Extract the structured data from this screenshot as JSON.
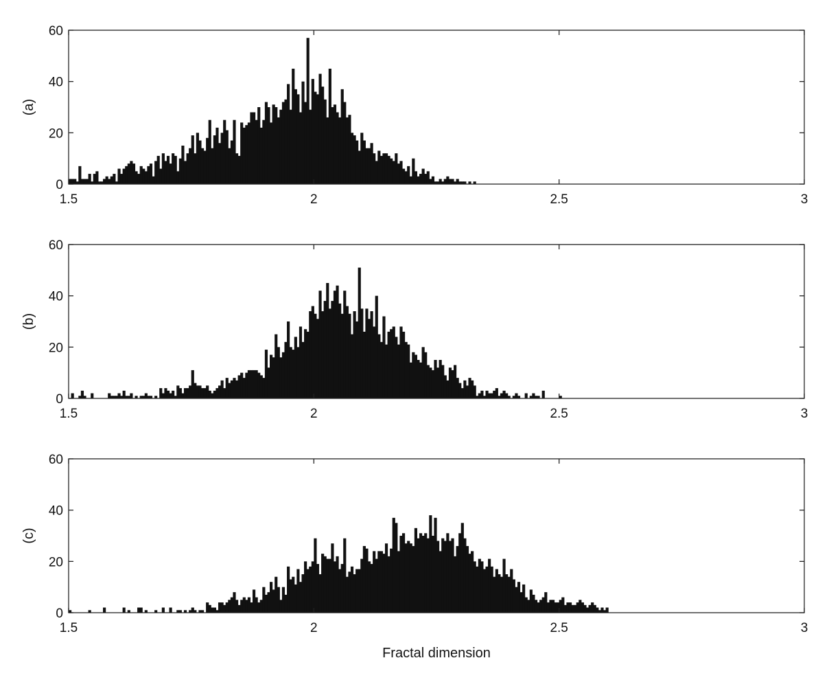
{
  "chart_data": [
    {
      "type": "bar",
      "panel_label": "(a)",
      "xlim": [
        1.5,
        3
      ],
      "ylim": [
        0,
        60
      ],
      "xticks": [
        "1.5",
        "2",
        "2.5",
        "3"
      ],
      "yticks": [
        "0",
        "20",
        "40",
        "60"
      ],
      "xlabel": "",
      "grid": false,
      "bin_start": 1.5,
      "bin_width": 0.005,
      "colors": {
        "bars": "#111111"
      },
      "values": [
        2,
        2,
        2,
        1,
        7,
        2,
        2,
        2,
        4,
        1,
        4,
        5,
        1,
        1,
        2,
        3,
        2,
        3,
        4,
        1,
        6,
        4,
        6,
        7,
        8,
        9,
        8,
        5,
        4,
        7,
        6,
        5,
        7,
        8,
        3,
        9,
        11,
        6,
        12,
        9,
        11,
        8,
        12,
        11,
        5,
        10,
        15,
        9,
        12,
        14,
        19,
        12,
        20,
        17,
        14,
        13,
        18,
        25,
        14,
        19,
        22,
        16,
        20,
        25,
        21,
        14,
        17,
        25,
        12,
        11,
        24,
        22,
        23,
        24,
        28,
        28,
        25,
        30,
        22,
        25,
        32,
        30,
        24,
        31,
        30,
        26,
        29,
        32,
        33,
        39,
        29,
        45,
        37,
        35,
        28,
        40,
        32,
        57,
        29,
        41,
        36,
        35,
        43,
        38,
        33,
        26,
        45,
        30,
        31,
        28,
        26,
        37,
        32,
        26,
        27,
        20,
        19,
        17,
        13,
        20,
        17,
        14,
        14,
        16,
        12,
        9,
        13,
        11,
        12,
        12,
        11,
        10,
        9,
        12,
        8,
        9,
        6,
        5,
        7,
        3,
        10,
        5,
        3,
        4,
        6,
        4,
        5,
        2,
        3,
        1,
        1,
        2,
        1,
        2,
        3,
        2,
        2,
        1,
        2,
        1,
        1,
        1,
        0,
        1,
        0,
        1
      ]
    },
    {
      "type": "bar",
      "panel_label": "(b)",
      "xlim": [
        1.5,
        3
      ],
      "ylim": [
        0,
        60
      ],
      "xticks": [
        "1.5",
        "2",
        "2.5",
        "3"
      ],
      "yticks": [
        "0",
        "20",
        "40",
        "60"
      ],
      "xlabel": "",
      "grid": false,
      "bin_start": 1.5,
      "bin_width": 0.005,
      "colors": {
        "bars": "#111111"
      },
      "values": [
        0,
        2,
        0,
        0,
        1,
        3,
        1,
        0,
        0,
        2,
        0,
        0,
        0,
        0,
        0,
        0,
        2,
        1,
        1,
        1,
        2,
        1,
        3,
        1,
        1,
        2,
        0,
        1,
        0,
        1,
        1,
        2,
        1,
        1,
        0,
        1,
        0,
        4,
        2,
        4,
        3,
        2,
        3,
        1,
        5,
        4,
        2,
        4,
        4,
        5,
        11,
        6,
        5,
        5,
        4,
        4,
        5,
        3,
        2,
        3,
        4,
        5,
        7,
        4,
        8,
        6,
        7,
        8,
        7,
        9,
        10,
        8,
        10,
        11,
        11,
        11,
        11,
        10,
        9,
        8,
        19,
        12,
        17,
        16,
        25,
        20,
        16,
        18,
        22,
        30,
        20,
        19,
        24,
        20,
        28,
        22,
        27,
        26,
        34,
        36,
        33,
        31,
        42,
        34,
        38,
        45,
        35,
        38,
        42,
        44,
        37,
        33,
        42,
        36,
        33,
        25,
        34,
        30,
        51,
        35,
        26,
        35,
        31,
        34,
        28,
        40,
        25,
        22,
        32,
        21,
        26,
        27,
        28,
        24,
        21,
        28,
        26,
        22,
        21,
        14,
        18,
        17,
        15,
        14,
        20,
        18,
        13,
        12,
        11,
        15,
        12,
        15,
        13,
        9,
        7,
        12,
        11,
        13,
        8,
        6,
        4,
        7,
        5,
        8,
        7,
        5,
        1,
        2,
        3,
        1,
        3,
        2,
        2,
        3,
        4,
        1,
        2,
        3,
        2,
        1,
        0,
        1,
        2,
        1,
        0,
        0,
        2,
        0,
        1,
        2,
        1,
        1,
        0,
        3,
        0,
        0,
        0,
        0,
        0,
        0,
        1
      ]
    },
    {
      "type": "bar",
      "panel_label": "(c)",
      "xlim": [
        1.5,
        3
      ],
      "ylim": [
        0,
        60
      ],
      "xticks": [
        "1.5",
        "2",
        "2.5",
        "3"
      ],
      "yticks": [
        "0",
        "20",
        "40",
        "60"
      ],
      "xlabel": "Fractal dimension",
      "grid": false,
      "bin_start": 1.5,
      "bin_width": 0.005,
      "colors": {
        "bars": "#111111"
      },
      "values": [
        1,
        0,
        0,
        0,
        0,
        0,
        0,
        0,
        1,
        0,
        0,
        0,
        0,
        0,
        2,
        0,
        0,
        0,
        0,
        0,
        0,
        0,
        2,
        0,
        1,
        0,
        0,
        0,
        2,
        2,
        0,
        1,
        0,
        0,
        0,
        1,
        0,
        0,
        2,
        0,
        0,
        2,
        0,
        0,
        1,
        1,
        0,
        1,
        0,
        1,
        2,
        1,
        0,
        1,
        1,
        0,
        4,
        3,
        2,
        2,
        1,
        4,
        4,
        3,
        4,
        5,
        6,
        8,
        5,
        3,
        5,
        6,
        5,
        6,
        4,
        9,
        6,
        4,
        5,
        10,
        7,
        8,
        12,
        9,
        14,
        10,
        5,
        10,
        7,
        18,
        13,
        14,
        11,
        17,
        12,
        15,
        20,
        17,
        18,
        20,
        29,
        19,
        15,
        23,
        22,
        21,
        21,
        27,
        20,
        22,
        17,
        19,
        29,
        14,
        16,
        18,
        15,
        17,
        17,
        21,
        26,
        25,
        20,
        19,
        24,
        21,
        24,
        24,
        23,
        27,
        22,
        25,
        37,
        35,
        24,
        30,
        31,
        27,
        28,
        27,
        26,
        33,
        29,
        31,
        30,
        31,
        29,
        38,
        30,
        37,
        28,
        24,
        29,
        28,
        31,
        28,
        29,
        22,
        26,
        31,
        35,
        29,
        26,
        23,
        24,
        20,
        18,
        21,
        20,
        17,
        18,
        21,
        18,
        14,
        17,
        15,
        14,
        21,
        15,
        14,
        17,
        13,
        10,
        12,
        8,
        11,
        6,
        5,
        9,
        7,
        5,
        4,
        5,
        6,
        8,
        4,
        5,
        5,
        4,
        4,
        5,
        6,
        3,
        4,
        4,
        3,
        3,
        4,
        5,
        4,
        3,
        2,
        3,
        4,
        3,
        2,
        1,
        2,
        1,
        2
      ]
    }
  ]
}
